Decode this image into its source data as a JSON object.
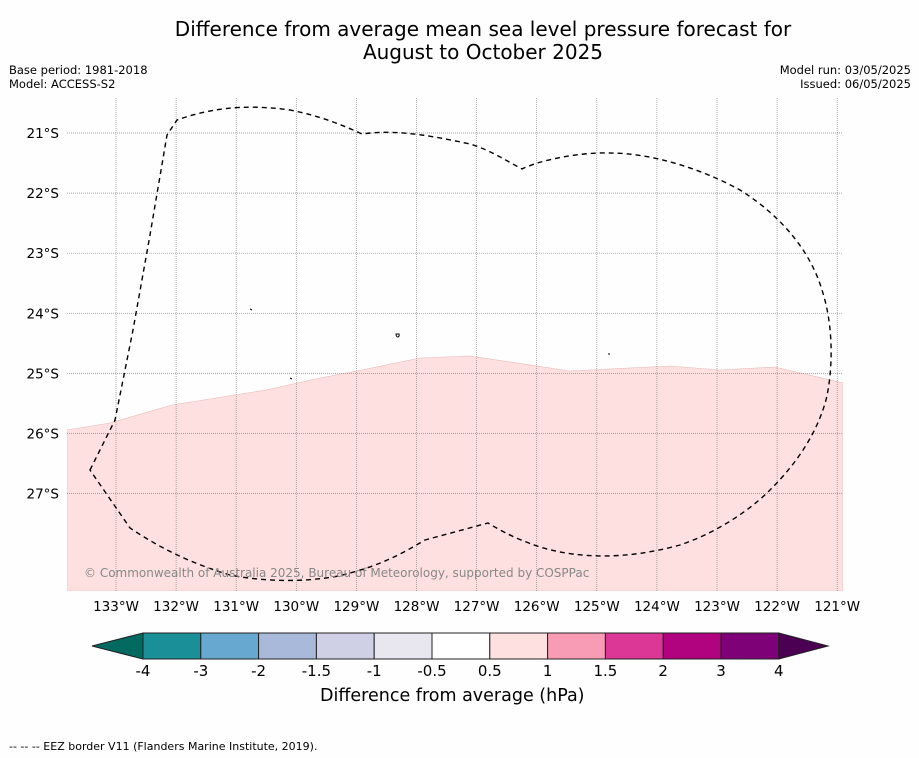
{
  "title": {
    "line1": "Difference from average mean sea level pressure forecast for",
    "line2": "August to October 2025"
  },
  "meta": {
    "base_period": "Base period: 1981-2018",
    "model": "Model: ACCESS-S2",
    "model_run": "Model run: 03/05/2025",
    "issued": "Issued: 06/05/2025"
  },
  "map": {
    "lat_labels": [
      "21°S",
      "22°S",
      "23°S",
      "24°S",
      "25°S",
      "26°S",
      "27°S"
    ],
    "lon_labels": [
      "133°W",
      "132°W",
      "131°W",
      "130°W",
      "129°W",
      "128°W",
      "127°W",
      "126°W",
      "125°W",
      "124°W",
      "123°W",
      "122°W",
      "121°W"
    ],
    "copyright": "© Commonwealth of Australia 2025, Bureau of Meteorology, supported by COSPPac",
    "shaded_category": "0.5 to 1",
    "shade_color": "#fde0df"
  },
  "colorbar": {
    "title": "Difference from average (hPa)",
    "labels": [
      "-4",
      "-3",
      "-2",
      "-1.5",
      "-1",
      "-0.5",
      "0.5",
      "1",
      "1.5",
      "2",
      "3",
      "4"
    ],
    "colors": [
      "#006a61",
      "#1b8f98",
      "#66a8d0",
      "#a8b9da",
      "#cfd0e6",
      "#e8e7ef",
      "#ffffff",
      "#fde0df",
      "#f89cb6",
      "#dc3696",
      "#b1027f",
      "#7f0177",
      "#4b0054"
    ]
  },
  "footer": {
    "eez_legend": "-- -- -- EEZ border V11 (Flanders Marine Institute, 2019)."
  }
}
